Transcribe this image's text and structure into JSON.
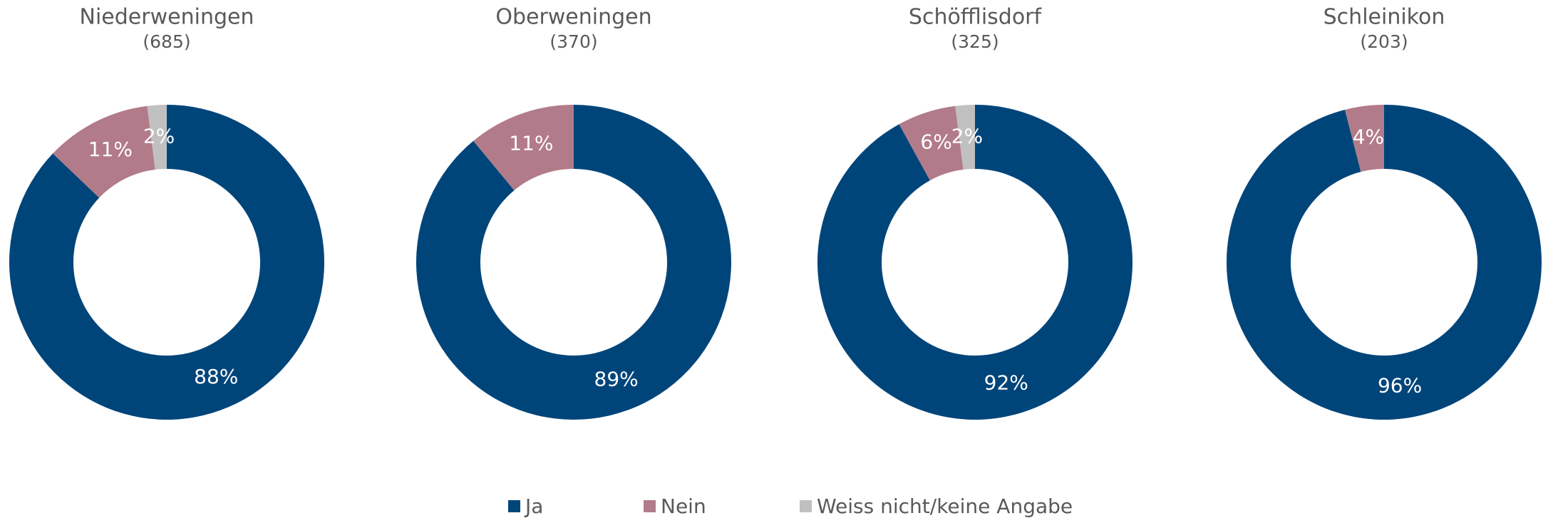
{
  "chart_data": [
    {
      "type": "pie",
      "title": "Niederweningen",
      "subtitle": "(685)",
      "categories": [
        "Ja",
        "Nein",
        "Weiss nicht/keine Angabe"
      ],
      "values": [
        88,
        11,
        2
      ],
      "value_labels": [
        "88%",
        "11%",
        "2%"
      ],
      "colors": [
        "#00457a",
        "#b27b89",
        "#c0c0c0"
      ],
      "donut": true
    },
    {
      "type": "pie",
      "title": "Oberweningen",
      "subtitle": "(370)",
      "categories": [
        "Ja",
        "Nein"
      ],
      "values": [
        89,
        11
      ],
      "value_labels": [
        "89%",
        "11%"
      ],
      "colors": [
        "#00457a",
        "#b27b89"
      ],
      "donut": true
    },
    {
      "type": "pie",
      "title": "Schöfflisdorf",
      "subtitle": "(325)",
      "categories": [
        "Ja",
        "Nein",
        "Weiss nicht/keine Angabe"
      ],
      "values": [
        92,
        6,
        2
      ],
      "value_labels": [
        "92%",
        "6%",
        "2%"
      ],
      "colors": [
        "#00457a",
        "#b27b89",
        "#c0c0c0"
      ],
      "donut": true
    },
    {
      "type": "pie",
      "title": "Schleinikon",
      "subtitle": "(203)",
      "categories": [
        "Ja",
        "Nein"
      ],
      "values": [
        96,
        4
      ],
      "value_labels": [
        "96%",
        "4%"
      ],
      "colors": [
        "#00457a",
        "#b27b89"
      ],
      "donut": true
    }
  ]
}
